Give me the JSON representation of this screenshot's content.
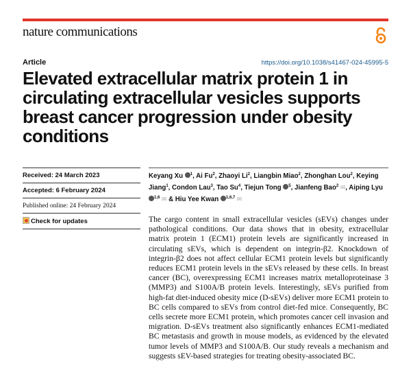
{
  "header": {
    "journal": "nature communications",
    "oa_icon": "open-access-icon",
    "accent": "#e2352a"
  },
  "article_type": "Article",
  "doi": "https://doi.org/10.1038/s41467-024-45995-5",
  "title": "Elevated extracellular matrix protein 1 in circulating extracellular vesicles supports breast cancer progression under obesity conditions",
  "dates": {
    "received": "Received: 24 March 2023",
    "accepted": "Accepted: 6 February 2024",
    "published": "Published online: 24 February 2024",
    "check_updates": "Check for updates"
  },
  "authors": [
    {
      "name": "Keyang Xu",
      "orcid": true,
      "aff": "1"
    },
    {
      "name": "Ai Fu",
      "aff": "2"
    },
    {
      "name": "Zhaoyi Li",
      "aff": "2"
    },
    {
      "name": "Liangbin Miao",
      "aff": "2"
    },
    {
      "name": "Zhonghan Lou",
      "aff": "2"
    },
    {
      "name": "Keying Jiang",
      "aff": "1"
    },
    {
      "name": "Condon Lau",
      "aff": "3"
    },
    {
      "name": "Tao Su",
      "aff": "4"
    },
    {
      "name": "Tiejun Tong",
      "orcid": true,
      "aff": "5"
    },
    {
      "name": "Jianfeng Bao",
      "aff": "2",
      "mail": true
    },
    {
      "name": "Aiping Lyu",
      "orcid": true,
      "aff": "1,6",
      "mail": true
    },
    {
      "name": "Hiu Yee Kwan",
      "orcid": true,
      "aff": "1,6,7",
      "mail": true
    }
  ],
  "abstract": "The cargo content in small extracellular vesicles (sEVs) changes under pathological conditions. Our data shows that in obesity, extracellular matrix protein 1 (ECM1) protein levels are significantly increased in circulating sEVs, which is dependent on integrin-β2. Knockdown of integrin-β2 does not affect cellular ECM1 protein levels but significantly reduces ECM1 protein levels in the sEVs released by these cells. In breast cancer (BC), overexpressing ECM1 increases matrix metalloproteinase 3 (MMP3) and S100A/B protein levels. Interestingly, sEVs purified from high-fat diet-induced obesity mice (D-sEVs) deliver more ECM1 protein to BC cells compared to sEVs from control diet-fed mice. Consequently, BC cells secrete more ECM1 protein, which promotes cancer cell invasion and migration. D-sEVs treatment also significantly enhances ECM1-mediated BC metastasis and growth in mouse models, as evidenced by the elevated tumor levels of MMP3 and S100A/B. Our study reveals a mechanism and suggests sEV-based strategies for treating obesity-associated BC."
}
